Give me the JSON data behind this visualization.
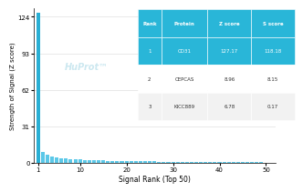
{
  "xlabel": "Signal Rank (Top 50)",
  "ylabel": "Strength of Signal (Z score)",
  "yticks": [
    0,
    31,
    62,
    93,
    124
  ],
  "xticks": [
    1,
    10,
    20,
    30,
    40,
    50
  ],
  "xlim": [
    0,
    52
  ],
  "ylim": [
    0,
    131
  ],
  "bar_color_default": "#5bc8e8",
  "bar_color_top": "#29afd4",
  "watermark": "HuProt™",
  "watermark_color": "#cce8f0",
  "table_headers": [
    "Rank",
    "Protein",
    "Z score",
    "S score"
  ],
  "table_rows": [
    [
      "1",
      "CD31",
      "127.17",
      "118.18"
    ],
    [
      "2",
      "CEPCAS",
      "8.96",
      "8.15"
    ],
    [
      "3",
      "KICC889",
      "6.78",
      "0.17"
    ]
  ],
  "table_header_bg": "#29b6d8",
  "table_row1_bg": "#29b6d8",
  "top_value": 127.17,
  "decay_values": [
    8.96,
    6.78,
    5.5,
    4.8,
    4.2,
    3.8,
    3.5,
    3.2,
    2.9,
    2.7,
    2.5,
    2.3,
    2.1,
    2.0,
    1.9,
    1.8,
    1.7,
    1.6,
    1.55,
    1.5,
    1.45,
    1.4,
    1.35,
    1.3,
    1.25,
    1.2,
    1.15,
    1.1,
    1.05,
    1.0,
    0.95,
    0.92,
    0.89,
    0.86,
    0.83,
    0.8,
    0.77,
    0.74,
    0.71,
    0.68,
    0.65,
    0.62,
    0.59,
    0.56,
    0.53,
    0.5,
    0.47,
    0.44,
    0.41
  ]
}
